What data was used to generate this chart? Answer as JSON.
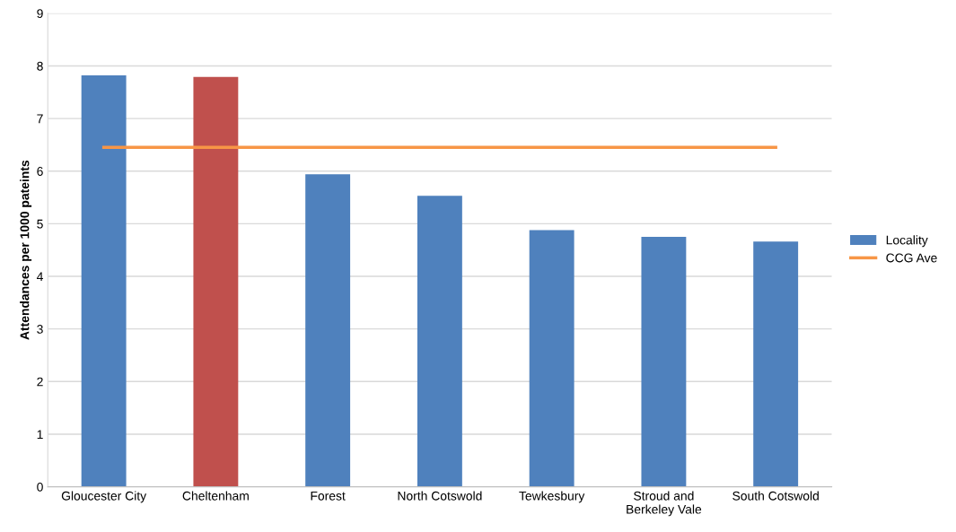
{
  "chart_data": {
    "type": "bar",
    "ylabel": "Attendances per 1000 pateints",
    "categories": [
      "Gloucester City",
      "Cheltenham",
      "Forest",
      "North Cotswold",
      "Tewkesbury",
      "Stroud and\nBerkeley Vale",
      "South Cotswold"
    ],
    "series": [
      {
        "name": "Locality",
        "color": "#4f81bd",
        "colors": [
          "#4f81bd",
          "#c0504d",
          "#4f81bd",
          "#4f81bd",
          "#4f81bd",
          "#4f81bd",
          "#4f81bd"
        ],
        "values": [
          7.82,
          7.79,
          5.94,
          5.53,
          4.88,
          4.75,
          4.66
        ]
      },
      {
        "name": "CCG Ave",
        "type": "line",
        "color": "#f79646",
        "values": [
          6.45,
          6.45,
          6.45,
          6.45,
          6.45,
          6.45,
          6.45
        ]
      }
    ],
    "ylim": [
      0,
      9
    ],
    "yticks": [
      0,
      1,
      2,
      3,
      4,
      5,
      6,
      7,
      8,
      9
    ],
    "grid": "y",
    "legend": "right",
    "marker": "none",
    "line_style": "solid"
  }
}
